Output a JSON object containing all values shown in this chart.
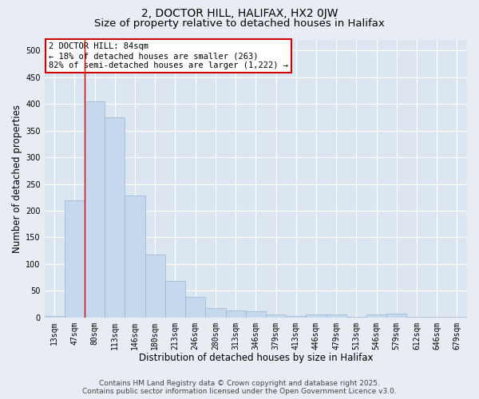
{
  "title_line1": "2, DOCTOR HILL, HALIFAX, HX2 0JW",
  "title_line2": "Size of property relative to detached houses in Halifax",
  "xlabel": "Distribution of detached houses by size in Halifax",
  "ylabel": "Number of detached properties",
  "categories": [
    "13sqm",
    "47sqm",
    "80sqm",
    "113sqm",
    "146sqm",
    "180sqm",
    "213sqm",
    "246sqm",
    "280sqm",
    "313sqm",
    "346sqm",
    "379sqm",
    "413sqm",
    "446sqm",
    "479sqm",
    "513sqm",
    "546sqm",
    "579sqm",
    "612sqm",
    "646sqm",
    "679sqm"
  ],
  "values": [
    3,
    220,
    405,
    375,
    228,
    118,
    68,
    38,
    17,
    13,
    12,
    5,
    3,
    6,
    6,
    1,
    6,
    7,
    1,
    1,
    1
  ],
  "bar_color": "#c5d8ed",
  "bar_edge_color": "#9ab5d0",
  "vline_x": 1.5,
  "vline_color": "#cc0000",
  "annotation_text": "2 DOCTOR HILL: 84sqm\n← 18% of detached houses are smaller (263)\n82% of semi-detached houses are larger (1,222) →",
  "annotation_box_color": "#cc0000",
  "ylim": [
    0,
    520
  ],
  "yticks": [
    0,
    50,
    100,
    150,
    200,
    250,
    300,
    350,
    400,
    450,
    500
  ],
  "bg_color": "#e8edf3",
  "plot_bg_color": "#dce6f0",
  "grid_color": "#ffffff",
  "footer_line1": "Contains HM Land Registry data © Crown copyright and database right 2025.",
  "footer_line2": "Contains public sector information licensed under the Open Government Licence v3.0.",
  "title_fontsize": 10,
  "subtitle_fontsize": 9.5,
  "axis_label_fontsize": 8.5,
  "tick_fontsize": 7,
  "annotation_fontsize": 7.5,
  "footer_fontsize": 6.5
}
